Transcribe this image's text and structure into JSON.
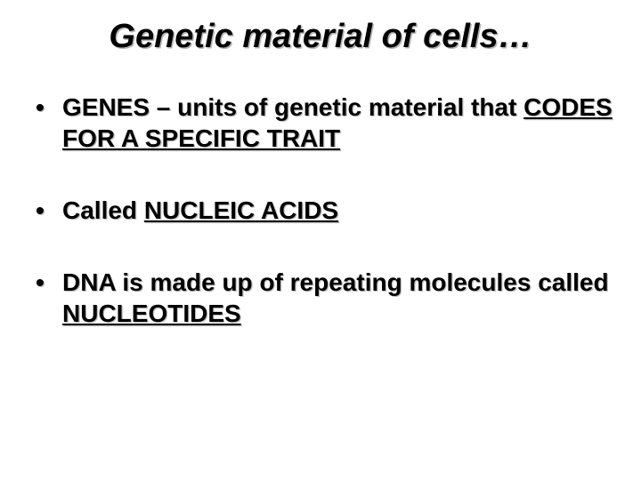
{
  "title": "Genetic material of cells…",
  "bullets": [
    {
      "segments": [
        {
          "text": "GENES – units of genetic material that ",
          "underline": false
        },
        {
          "text": "CODES FOR A SPECIFIC TRAIT",
          "underline": true
        }
      ]
    },
    {
      "segments": [
        {
          "text": "Called ",
          "underline": false
        },
        {
          "text": "NUCLEIC ACIDS",
          "underline": true
        }
      ]
    },
    {
      "segments": [
        {
          "text": "DNA is made up of repeating molecules called ",
          "underline": false
        },
        {
          "text": "NUCLEOTIDES",
          "underline": true
        }
      ]
    }
  ],
  "styling": {
    "background_color": "#ffffff",
    "text_color": "#000000",
    "shadow_color": "rgba(160,160,160,0.7)",
    "title_fontsize": 38,
    "bullet_fontsize": 28,
    "font_family": "Arial",
    "title_italic": true,
    "bold_all": true
  }
}
